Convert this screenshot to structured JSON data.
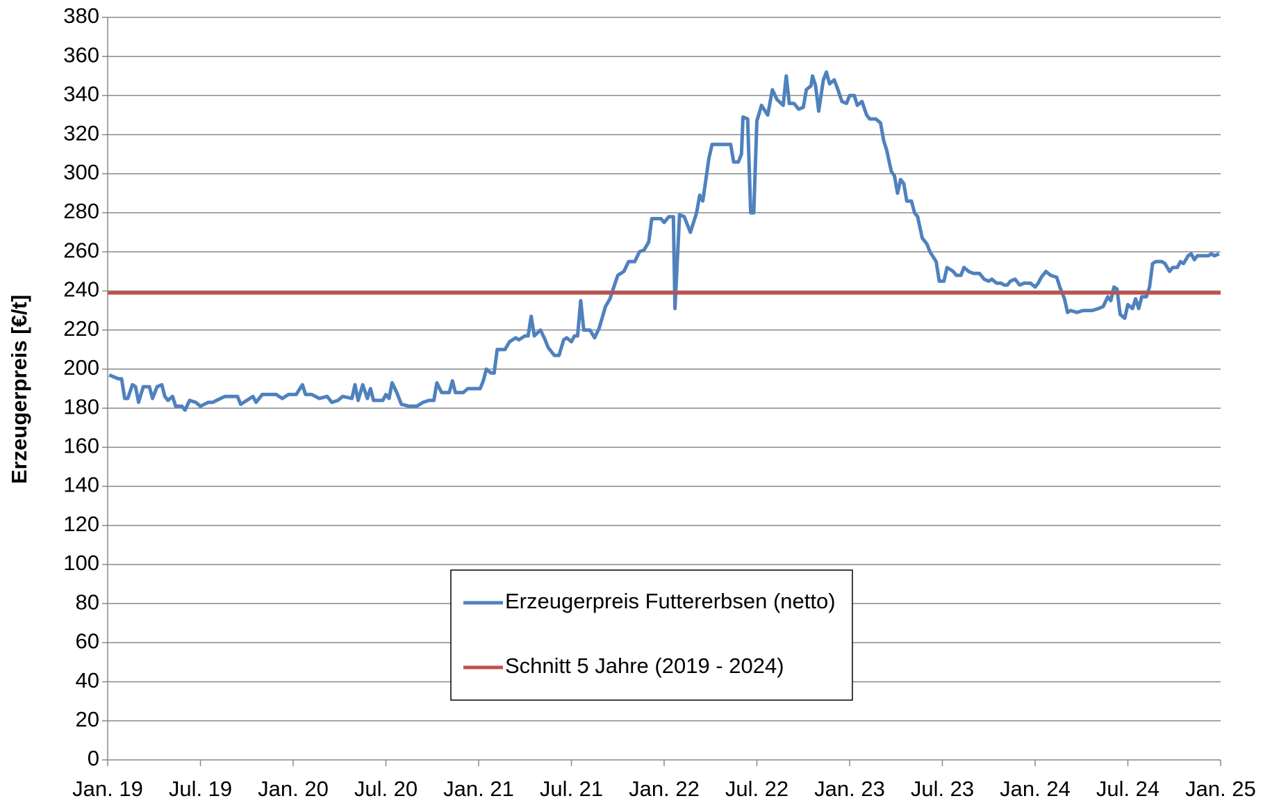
{
  "chart_data": {
    "type": "line",
    "ylabel": "Erzeugerpreis [€/t]",
    "xlim": [
      0,
      72
    ],
    "ylim": [
      0,
      380
    ],
    "xticks": [
      {
        "value": 0,
        "label": "Jan. 19"
      },
      {
        "value": 6,
        "label": "Jul. 19"
      },
      {
        "value": 12,
        "label": "Jan. 20"
      },
      {
        "value": 18,
        "label": "Jul. 20"
      },
      {
        "value": 24,
        "label": "Jan. 21"
      },
      {
        "value": 30,
        "label": "Jul. 21"
      },
      {
        "value": 36,
        "label": "Jan. 22"
      },
      {
        "value": 42,
        "label": "Jul. 22"
      },
      {
        "value": 48,
        "label": "Jan. 23"
      },
      {
        "value": 54,
        "label": "Jul. 23"
      },
      {
        "value": 60,
        "label": "Jan. 24"
      },
      {
        "value": 66,
        "label": "Jul. 24"
      },
      {
        "value": 72,
        "label": "Jan. 25"
      }
    ],
    "yticks": [
      0,
      20,
      40,
      60,
      80,
      100,
      120,
      140,
      160,
      180,
      200,
      220,
      240,
      260,
      280,
      300,
      320,
      340,
      360,
      380
    ],
    "grid": true,
    "legend": "center",
    "series": [
      {
        "name": "Erzeugerpreis Futtererbsen (netto)",
        "color": "#4f81bd",
        "x": [
          0.1,
          0.7,
          0.9,
          1.1,
          1.3,
          1.6,
          1.8,
          2.0,
          2.3,
          2.7,
          2.9,
          3.2,
          3.5,
          3.7,
          3.9,
          4.2,
          4.4,
          4.8,
          5.0,
          5.3,
          5.7,
          6.0,
          6.5,
          6.8,
          7.3,
          7.6,
          8.4,
          8.6,
          9.0,
          9.4,
          9.6,
          10.0,
          10.9,
          11.3,
          11.7,
          12.2,
          12.6,
          12.8,
          13.2,
          13.7,
          14.2,
          14.5,
          14.9,
          15.2,
          15.8,
          16.0,
          16.2,
          16.5,
          16.8,
          17.0,
          17.2,
          17.8,
          18.0,
          18.2,
          18.4,
          18.7,
          19.0,
          19.5,
          20.0,
          20.4,
          20.8,
          21.1,
          21.3,
          21.6,
          22.1,
          22.3,
          22.5,
          23.0,
          23.3,
          24.1,
          24.3,
          24.5,
          24.8,
          25.0,
          25.2,
          25.7,
          26.0,
          26.4,
          26.6,
          27.0,
          27.2,
          27.4,
          27.6,
          28.0,
          28.3,
          28.5,
          28.9,
          29.2,
          29.5,
          29.7,
          30.0,
          30.2,
          30.4,
          30.6,
          30.8,
          31.2,
          31.5,
          31.8,
          32.2,
          32.5,
          32.7,
          33.0,
          33.4,
          33.7,
          34.1,
          34.4,
          34.7,
          35.0,
          35.2,
          35.8,
          36.0,
          36.3,
          36.6,
          36.7,
          37.0,
          37.3,
          37.7,
          38.1,
          38.3,
          38.5,
          38.7,
          38.9,
          39.1,
          40.3,
          40.5,
          40.8,
          41.0,
          41.1,
          41.4,
          41.6,
          41.8,
          42.0,
          42.3,
          42.7,
          43.0,
          43.3,
          43.7,
          43.9,
          44.1,
          44.4,
          44.7,
          45.0,
          45.2,
          45.5,
          45.6,
          45.8,
          46.0,
          46.3,
          46.5,
          46.7,
          47.0,
          47.2,
          47.5,
          47.8,
          48.0,
          48.3,
          48.5,
          48.8,
          49.1,
          49.3,
          49.7,
          50.0,
          50.2,
          50.4,
          50.7,
          50.9,
          51.1,
          51.3,
          51.5,
          51.7,
          52.0,
          52.2,
          52.4,
          52.7,
          53.0,
          53.2,
          53.6,
          53.8,
          54.1,
          54.3,
          54.7,
          54.9,
          55.2,
          55.4,
          55.7,
          56.0,
          56.4,
          56.7,
          57.0,
          57.2,
          57.5,
          57.8,
          58.0,
          58.2,
          58.4,
          58.7,
          59.0,
          59.3,
          59.7,
          60.0,
          60.2,
          60.4,
          60.7,
          61.0,
          61.4,
          61.6,
          61.9,
          62.1,
          62.3,
          62.7,
          63.1,
          63.7,
          64.1,
          64.4,
          64.7,
          64.9,
          65.1,
          65.3,
          65.5,
          65.8,
          66.0,
          66.3,
          66.5,
          66.7,
          66.9,
          67.2,
          67.4,
          67.6,
          67.8,
          68.2,
          68.4,
          68.7,
          68.9,
          69.2,
          69.4,
          69.6,
          69.9,
          70.1,
          70.3,
          70.5,
          71.2,
          71.4,
          71.6,
          71.9
        ],
        "values": [
          197,
          195,
          195,
          185,
          185,
          192,
          191,
          183,
          191,
          191,
          185,
          191,
          192,
          186,
          184,
          186,
          181,
          181,
          179,
          184,
          183,
          181,
          183,
          183,
          185,
          186,
          186,
          182,
          184,
          186,
          183,
          187,
          187,
          185,
          187,
          187,
          192,
          187,
          187,
          185,
          186,
          183,
          184,
          186,
          185,
          192,
          184,
          192,
          185,
          190,
          184,
          184,
          187,
          185,
          193,
          188,
          182,
          181,
          181,
          183,
          184,
          184,
          193,
          188,
          188,
          194,
          188,
          188,
          190,
          190,
          194,
          200,
          198,
          198,
          210,
          210,
          214,
          216,
          215,
          217,
          217,
          227,
          217,
          220,
          215,
          211,
          207,
          207,
          215,
          216,
          214,
          217,
          217,
          235,
          220,
          220,
          216,
          221,
          232,
          236,
          241,
          248,
          250,
          255,
          255,
          260,
          261,
          265,
          277,
          277,
          275,
          278,
          278,
          231,
          279,
          278,
          270,
          280,
          289,
          286,
          297,
          308,
          315,
          315,
          306,
          306,
          310,
          329,
          328,
          280,
          280,
          327,
          335,
          330,
          343,
          338,
          335,
          350,
          336,
          336,
          333,
          334,
          343,
          345,
          350,
          345,
          332,
          348,
          352,
          346,
          348,
          344,
          337,
          336,
          340,
          340,
          335,
          337,
          330,
          328,
          328,
          326,
          317,
          312,
          301,
          299,
          290,
          297,
          295,
          286,
          286,
          280,
          278,
          267,
          264,
          260,
          255,
          245,
          245,
          252,
          250,
          248,
          248,
          252,
          250,
          249,
          249,
          246,
          245,
          246,
          244,
          244,
          243,
          243,
          245,
          246,
          243,
          244,
          244,
          242,
          244,
          247,
          250,
          248,
          247,
          242,
          236,
          229,
          230,
          229,
          230,
          230,
          231,
          232,
          237,
          235,
          242,
          241,
          228,
          226,
          233,
          231,
          236,
          231,
          237,
          237,
          242,
          254,
          255,
          255,
          254,
          250,
          252,
          252,
          255,
          254,
          258,
          259,
          256,
          258,
          258,
          259,
          258,
          259
        ]
      },
      {
        "name": "Schnitt 5 Jahre (2019 - 2024)",
        "color": "#c0504d",
        "x": [
          0,
          72
        ],
        "values": [
          239,
          239
        ]
      }
    ]
  }
}
